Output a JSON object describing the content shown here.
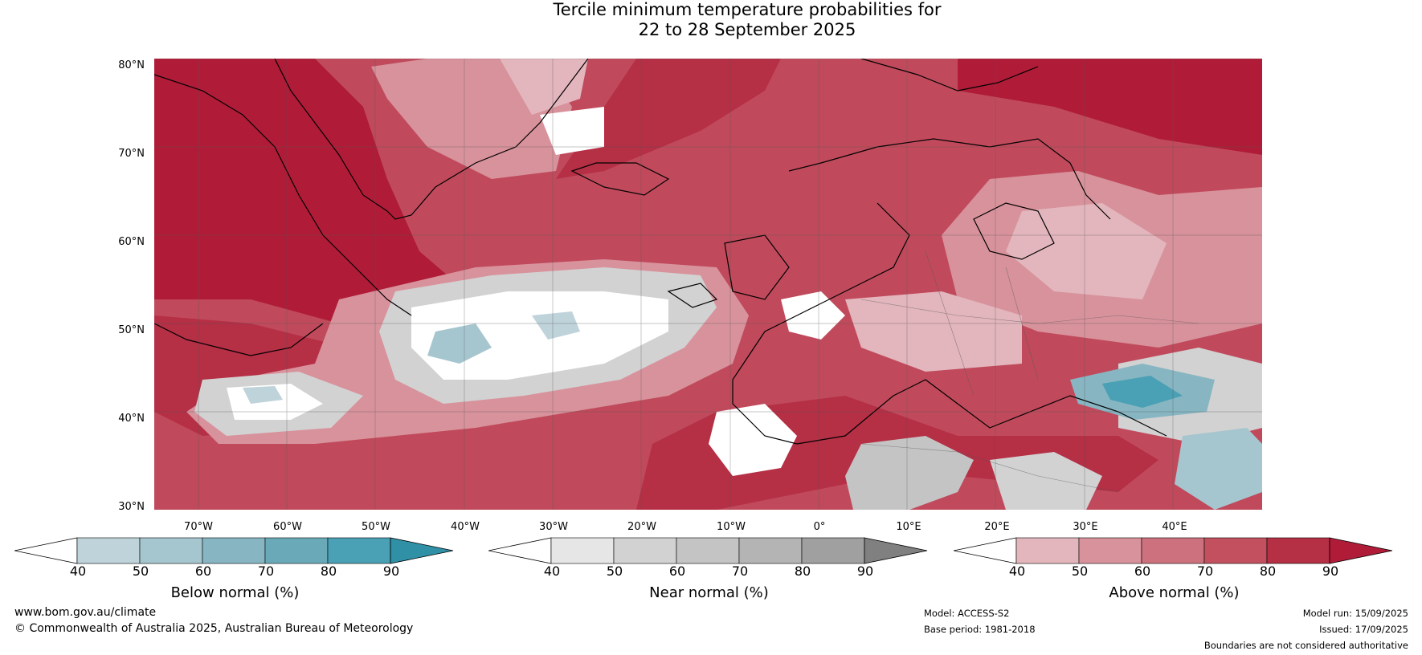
{
  "title": {
    "line1": "Tercile minimum temperature probabilities for",
    "line2": "22 to 28 September 2025"
  },
  "map": {
    "lat_labels": [
      "80°N",
      "70°N",
      "60°N",
      "50°N",
      "40°N",
      "30°N"
    ],
    "lon_labels": [
      "70°W",
      "60°W",
      "50°W",
      "40°W",
      "30°W",
      "20°W",
      "10°W",
      "0°",
      "10°E",
      "20°E",
      "30°E",
      "40°E"
    ]
  },
  "colorbars": [
    {
      "label": "Below normal (%)",
      "ticks": [
        "40",
        "50",
        "60",
        "70",
        "80",
        "90"
      ],
      "colors": [
        "#ffffff",
        "#bfd3da",
        "#a6c6cf",
        "#87b6c2",
        "#6aaab8",
        "#4aa0b4",
        "#2f90a6"
      ]
    },
    {
      "label": "Near normal (%)",
      "ticks": [
        "40",
        "50",
        "60",
        "70",
        "80",
        "90"
      ],
      "colors": [
        "#ffffff",
        "#e6e6e6",
        "#d2d2d2",
        "#c4c4c4",
        "#b4b4b4",
        "#a0a0a0",
        "#808080"
      ]
    },
    {
      "label": "Above normal (%)",
      "ticks": [
        "40",
        "50",
        "60",
        "70",
        "80",
        "90"
      ],
      "colors": [
        "#ffffff",
        "#e3b6bd",
        "#d8929c",
        "#cc717d",
        "#c2505f",
        "#b52f45",
        "#b01c38"
      ]
    }
  ],
  "footer": {
    "website": "www.bom.gov.au/climate",
    "copyright": "© Commonwealth of Australia 2025, Australian Bureau of Meteorology",
    "model": "Model: ACCESS-S2",
    "base_period": "Base period: 1981-2018",
    "model_run": "Model run: 15/09/2025",
    "issued": "Issued: 17/09/2025",
    "disclaimer": "Boundaries are not considered authoritative"
  }
}
